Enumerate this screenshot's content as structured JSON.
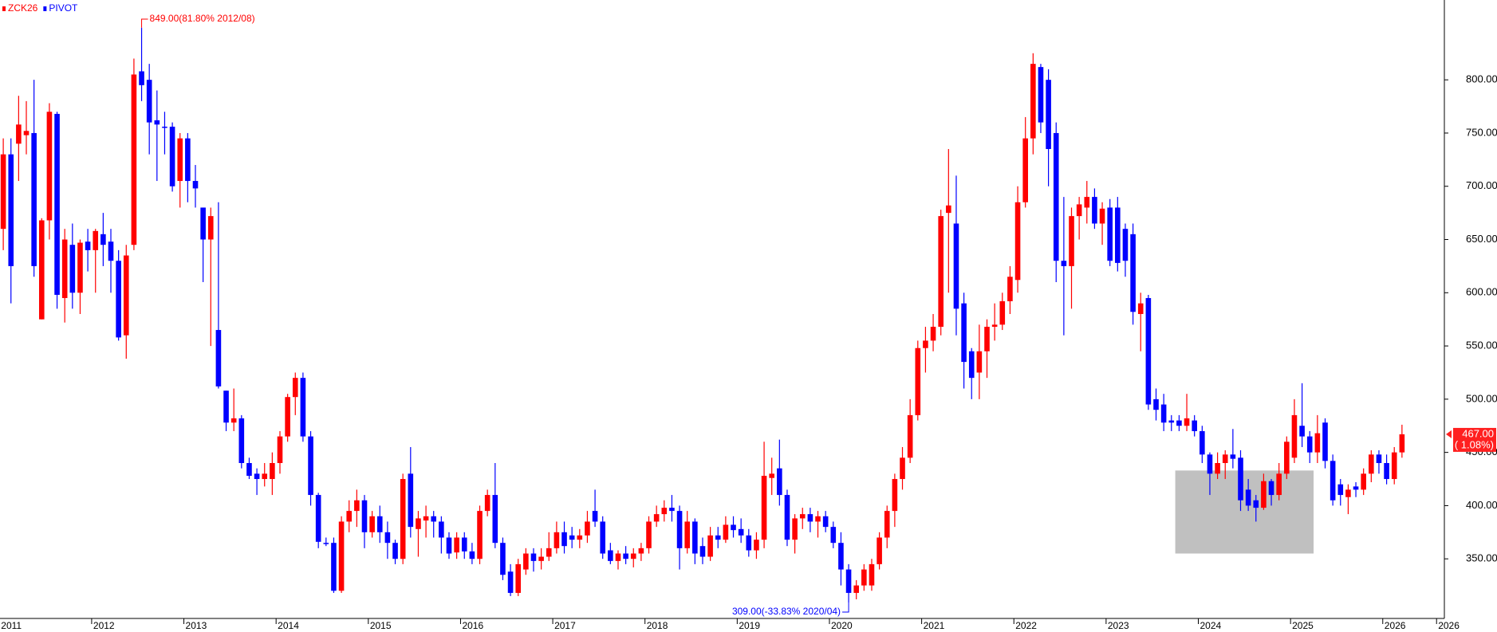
{
  "chart_data": {
    "type": "candlestick",
    "up_color": "#ff0000",
    "down_color": "#0000ff",
    "legend": [
      {
        "name": "ZCK26",
        "color": "#ff0000"
      },
      {
        "name": "PIVOT",
        "color": "#0000ff"
      }
    ],
    "series": [
      {
        "name": "ZCK26",
        "open": [
          660,
          730,
          740,
          748,
          750,
          575,
          668,
          768,
          595,
          645,
          600,
          648,
          640,
          655,
          648,
          630,
          560,
          645,
          808,
          800,
          762,
          756,
          756,
          705,
          745,
          705,
          680,
          650,
          565,
          508,
          478,
          482,
          440,
          430,
          425,
          425,
          440,
          465,
          502,
          520,
          465,
          410,
          365,
          365,
          320,
          385,
          395,
          405,
          375,
          390,
          375,
          365,
          350,
          430,
          378,
          386,
          390,
          385,
          370,
          356,
          370,
          357,
          350,
          395,
          410,
          365,
          338,
          318,
          340,
          355,
          348,
          352,
          360,
          375,
          372,
          368,
          372,
          395,
          385,
          358,
          348,
          355,
          350,
          355,
          360,
          385,
          392,
          398,
          395,
          360,
          385,
          362,
          352,
          372,
          368,
          382,
          378,
          372,
          358,
          368,
          426,
          435,
          410,
          368,
          388,
          392,
          385,
          390,
          380,
          365,
          340,
          318,
          325,
          325,
          345,
          370,
          395,
          425,
          445,
          485,
          548,
          555,
          568,
          675,
          665,
          590,
          545,
          525,
          545,
          568,
          570,
          592,
          612,
          685,
          745,
          812,
          800,
          750,
          630,
          625,
          672,
          680,
          690,
          665,
          680,
          680,
          660,
          655,
          580,
          595,
          500,
          495,
          480,
          480,
          475,
          480,
          470,
          448,
          430,
          440,
          448,
          445,
          415,
          405,
          398,
          423,
          410,
          430,
          445,
          475,
          465,
          450,
          478,
          442,
          420,
          408,
          418,
          415,
          430,
          448,
          440,
          425,
          450
        ],
        "high": [
          745,
          745,
          785,
          780,
          800,
          670,
          778,
          770,
          660,
          665,
          650,
          660,
          660,
          675,
          660,
          640,
          645,
          820,
          849,
          815,
          790,
          770,
          760,
          750,
          750,
          720,
          680,
          680,
          685,
          508,
          510,
          485,
          445,
          435,
          440,
          450,
          470,
          505,
          525,
          525,
          470,
          412,
          370,
          370,
          390,
          405,
          415,
          410,
          395,
          400,
          385,
          368,
          430,
          455,
          395,
          400,
          395,
          390,
          375,
          375,
          375,
          365,
          400,
          415,
          440,
          370,
          345,
          350,
          360,
          360,
          360,
          375,
          385,
          385,
          380,
          378,
          395,
          415,
          390,
          365,
          358,
          362,
          360,
          365,
          390,
          400,
          405,
          410,
          400,
          395,
          388,
          370,
          380,
          380,
          390,
          390,
          388,
          378,
          375,
          460,
          445,
          462,
          415,
          392,
          398,
          398,
          395,
          395,
          385,
          375,
          345,
          330,
          345,
          350,
          375,
          400,
          430,
          455,
          500,
          555,
          568,
          580,
          678,
          735,
          710,
          600,
          548,
          570,
          575,
          590,
          600,
          625,
          700,
          765,
          825,
          815,
          810,
          760,
          690,
          680,
          690,
          705,
          698,
          685,
          688,
          690,
          665,
          665,
          600,
          598,
          510,
          505,
          485,
          485,
          505,
          485,
          475,
          450,
          450,
          452,
          472,
          452,
          425,
          410,
          430,
          425,
          440,
          465,
          500,
          515,
          470,
          485,
          482,
          448,
          425,
          420,
          422,
          435,
          452,
          452,
          448,
          455,
          476
        ],
        "low": [
          640,
          590,
          705,
          730,
          615,
          575,
          650,
          585,
          572,
          585,
          580,
          620,
          600,
          625,
          600,
          555,
          538,
          640,
          780,
          730,
          705,
          730,
          695,
          680,
          685,
          680,
          610,
          550,
          510,
          470,
          470,
          435,
          425,
          410,
          418,
          410,
          430,
          460,
          485,
          460,
          400,
          360,
          362,
          318,
          318,
          375,
          380,
          360,
          370,
          365,
          350,
          345,
          345,
          370,
          352,
          370,
          370,
          355,
          350,
          350,
          350,
          345,
          345,
          390,
          360,
          330,
          315,
          315,
          335,
          338,
          340,
          348,
          355,
          355,
          360,
          360,
          365,
          380,
          350,
          345,
          340,
          345,
          342,
          348,
          355,
          380,
          385,
          385,
          340,
          355,
          345,
          345,
          348,
          360,
          365,
          370,
          365,
          352,
          350,
          360,
          410,
          400,
          362,
          355,
          378,
          375,
          370,
          375,
          360,
          325,
          309,
          312,
          320,
          320,
          340,
          360,
          380,
          415,
          440,
          480,
          525,
          545,
          560,
          600,
          560,
          510,
          500,
          500,
          520,
          555,
          565,
          580,
          600,
          680,
          730,
          750,
          700,
          610,
          560,
          585,
          650,
          665,
          660,
          645,
          625,
          620,
          615,
          570,
          545,
          490,
          480,
          470,
          470,
          470,
          470,
          465,
          440,
          410,
          425,
          425,
          435,
          395,
          395,
          385,
          396,
          400,
          405,
          425,
          440,
          455,
          440,
          440,
          435,
          400,
          400,
          392,
          408,
          410,
          422,
          430,
          420,
          420,
          445
        ],
        "close": [
          730,
          625,
          758,
          752,
          625,
          668,
          770,
          598,
          650,
          600,
          647,
          640,
          658,
          645,
          630,
          558,
          635,
          805,
          795,
          760,
          758,
          755,
          700,
          745,
          705,
          698,
          650,
          672,
          512,
          478,
          482,
          440,
          428,
          425,
          430,
          440,
          465,
          502,
          520,
          465,
          410,
          366,
          364,
          320,
          385,
          395,
          405,
          375,
          390,
          375,
          365,
          350,
          425,
          380,
          388,
          390,
          385,
          370,
          355,
          370,
          357,
          350,
          395,
          410,
          365,
          335,
          318,
          345,
          355,
          348,
          352,
          360,
          375,
          362,
          368,
          372,
          385,
          385,
          355,
          348,
          355,
          350,
          355,
          360,
          385,
          392,
          398,
          395,
          360,
          385,
          355,
          352,
          372,
          368,
          382,
          377,
          372,
          358,
          368,
          428,
          430,
          410,
          368,
          388,
          392,
          385,
          390,
          380,
          365,
          340,
          318,
          325,
          340,
          345,
          370,
          395,
          425,
          445,
          485,
          548,
          555,
          568,
          672,
          682,
          585,
          535,
          520,
          545,
          568,
          570,
          592,
          615,
          685,
          745,
          815,
          760,
          735,
          630,
          625,
          672,
          683,
          690,
          665,
          679,
          630,
          628,
          630,
          582,
          590,
          495,
          490,
          478,
          478,
          475,
          482,
          470,
          448,
          430,
          440,
          448,
          444,
          405,
          400,
          398,
          423,
          410,
          430,
          460,
          485,
          465,
          450,
          468,
          442,
          405,
          410,
          415,
          415,
          430,
          448,
          440,
          425,
          450,
          467
        ]
      }
    ],
    "ylim": [
      294,
      875
    ],
    "yticks": [
      {
        "value": 350,
        "label": "350.00"
      },
      {
        "value": 400,
        "label": "400.00"
      },
      {
        "value": 450,
        "label": "450.00"
      },
      {
        "value": 500,
        "label": "500.00"
      },
      {
        "value": 550,
        "label": "550.00"
      },
      {
        "value": 600,
        "label": "600.00"
      },
      {
        "value": 650,
        "label": "650.00"
      },
      {
        "value": 700,
        "label": "700.00"
      },
      {
        "value": 750,
        "label": "750.00"
      },
      {
        "value": 800,
        "label": "800.00"
      }
    ],
    "xticks": [
      {
        "value": -1,
        "label": "2011"
      },
      {
        "value": 11,
        "label": "2012"
      },
      {
        "value": 23,
        "label": "2013"
      },
      {
        "value": 35,
        "label": "2014"
      },
      {
        "value": 47,
        "label": "2015"
      },
      {
        "value": 59,
        "label": "2016"
      },
      {
        "value": 71,
        "label": "2017"
      },
      {
        "value": 83,
        "label": "2018"
      },
      {
        "value": 95,
        "label": "2019"
      },
      {
        "value": 107,
        "label": "2020"
      },
      {
        "value": 119,
        "label": "2021"
      },
      {
        "value": 131,
        "label": "2022"
      },
      {
        "value": 143,
        "label": "2023"
      },
      {
        "value": 155,
        "label": "2024"
      },
      {
        "value": 167,
        "label": "2025"
      },
      {
        "value": 179,
        "label": "2026"
      },
      {
        "value": 186,
        "label": "2026"
      }
    ],
    "annotations": [
      {
        "text": "849.00(81.80% 2012/08)",
        "at": 18,
        "value": 849,
        "side": "above",
        "color": "#ff0000"
      },
      {
        "text": "309.00(-33.83% 2020/04)",
        "at": 110,
        "value": 309,
        "side": "below",
        "color": "#0000ff"
      }
    ],
    "highlight": {
      "start": 152.5,
      "end": 170.5,
      "low": 355,
      "high": 433,
      "color": "#c0c0c0"
    },
    "last_price": {
      "value": 467,
      "label": "467.00",
      "change": "( 1.08%)",
      "color": "#ff2020"
    }
  }
}
